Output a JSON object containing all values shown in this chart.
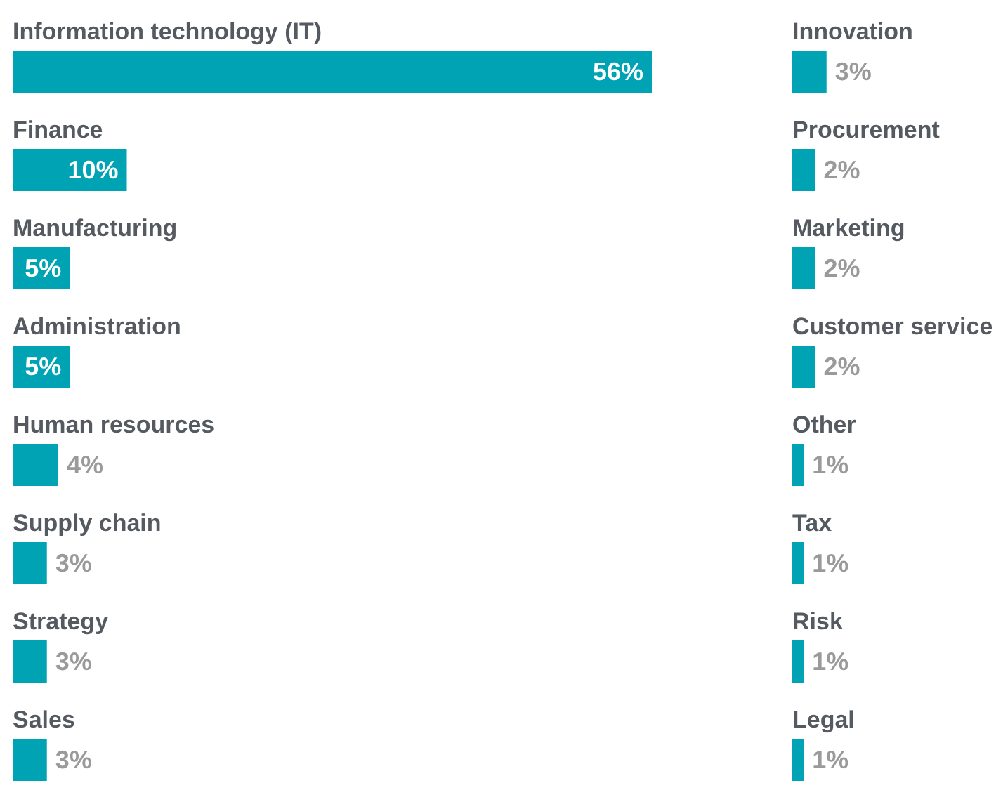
{
  "chart_data": [
    {
      "type": "bar",
      "orientation": "horizontal",
      "color": "#00a3b4",
      "categories": [
        "Information technology (IT)",
        "Finance",
        "Manufacturing",
        "Administration",
        "Human resources",
        "Supply chain",
        "Strategy",
        "Sales"
      ],
      "values": [
        56,
        10,
        5,
        5,
        4,
        3,
        3,
        3
      ],
      "value_labels": [
        "56%",
        "10%",
        "5%",
        "5%",
        "4%",
        "3%",
        "3%",
        "3%"
      ]
    },
    {
      "type": "bar",
      "orientation": "horizontal",
      "color": "#00a3b4",
      "categories": [
        "Innovation",
        "Procurement",
        "Marketing",
        "Customer service",
        "Other",
        "Tax",
        "Risk",
        "Legal"
      ],
      "values": [
        3,
        2,
        2,
        2,
        1,
        1,
        1,
        1
      ],
      "value_labels": [
        "3%",
        "2%",
        "2%",
        "2%",
        "1%",
        "1%",
        "1%",
        "1%"
      ]
    }
  ]
}
